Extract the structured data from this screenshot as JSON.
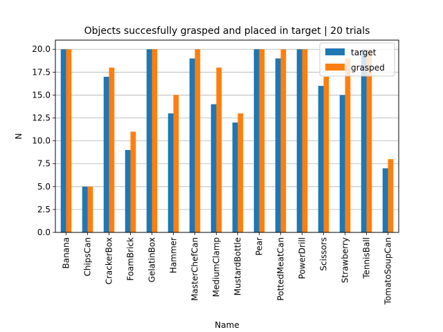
{
  "chart_data": {
    "type": "bar",
    "title": "Objects succesfully grasped and placed in target | 20 trials",
    "xlabel": "Name",
    "ylabel": "N",
    "ylim": [
      0,
      21
    ],
    "yticks": [
      "0.0",
      "2.5",
      "5.0",
      "7.5",
      "10.0",
      "12.5",
      "15.0",
      "17.5",
      "20.0"
    ],
    "grid": "horizontal",
    "legend_position": "top-right",
    "categories": [
      "Banana",
      "ChipsCan",
      "CrackerBox",
      "FoamBrick",
      "GelatinBox",
      "Hammer",
      "MasterChefCan",
      "MediumClamp",
      "MustardBottle",
      "Pear",
      "PottedMeatCan",
      "PowerDrill",
      "Scissors",
      "Strawberry",
      "TennisBall",
      "TomatoSoupCan"
    ],
    "series": [
      {
        "name": "target",
        "color": "#1f77b4",
        "values": [
          20,
          5,
          17,
          9,
          20,
          13,
          19,
          14,
          12,
          20,
          19,
          20,
          16,
          15,
          20,
          7
        ]
      },
      {
        "name": "grasped",
        "color": "#ff7f0e",
        "values": [
          20,
          5,
          18,
          11,
          20,
          15,
          20,
          18,
          13,
          20,
          20,
          20,
          17,
          19,
          20,
          8
        ]
      }
    ]
  }
}
